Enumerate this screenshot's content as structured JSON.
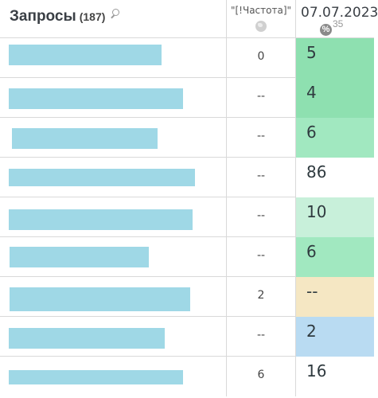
{
  "header": {
    "title": "Запросы",
    "count": "(187)",
    "frequency_label": "\"[!Частота]\"",
    "date": "07.07.2023",
    "percent_symbol": "%",
    "percent_value": "35"
  },
  "icons": {
    "search": "search-icon",
    "globe": "globe-icon",
    "percent": "percent-icon"
  },
  "colors": {
    "green_dark": "#88dfae",
    "green_mid": "#a0e8c0",
    "green_light": "#c7f0d9",
    "yellow": "#f5e7c2",
    "blue": "#b9dcf3",
    "white": "#ffffff",
    "redacted": "#9fd8e6"
  },
  "rows": [
    {
      "frequency": "0",
      "position": "5",
      "bg": "#8ee0b0"
    },
    {
      "frequency": "--",
      "position": "4",
      "bg": "#8ee0b0"
    },
    {
      "frequency": "--",
      "position": "6",
      "bg": "#a1e8c0"
    },
    {
      "frequency": "--",
      "position": "86",
      "bg": "#ffffff"
    },
    {
      "frequency": "--",
      "position": "10",
      "bg": "#c8f0da"
    },
    {
      "frequency": "--",
      "position": "6",
      "bg": "#a1e8c0"
    },
    {
      "frequency": "2",
      "position": "--",
      "bg": "#f5e7c3"
    },
    {
      "frequency": "--",
      "position": "2",
      "bg": "#b9dbf2"
    },
    {
      "frequency": "6",
      "position": "16",
      "bg": "#ffffff"
    }
  ]
}
